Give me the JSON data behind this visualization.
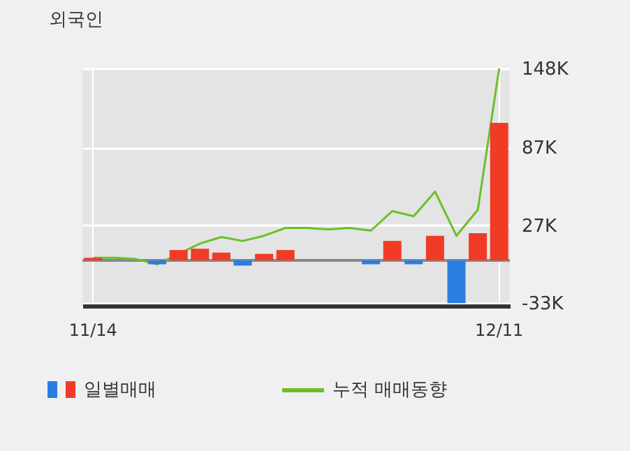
{
  "chart_data": {
    "type": "bar",
    "title": "외국인",
    "categories": [
      "11/14",
      null,
      null,
      null,
      null,
      null,
      null,
      null,
      null,
      null,
      null,
      null,
      null,
      null,
      null,
      null,
      null,
      null,
      null,
      "12/11"
    ],
    "series": [
      {
        "name": "일별매매",
        "values": [
          2000,
          null,
          null,
          -3000,
          8000,
          9000,
          6000,
          -4000,
          5000,
          8000,
          null,
          null,
          null,
          -3000,
          15000,
          -3000,
          19000,
          -33000,
          21000,
          106000
        ],
        "colors": [
          "#f03c26",
          null,
          null,
          "#2a7de1",
          "#f03c26",
          "#f03c26",
          "#f03c26",
          "#2a7de1",
          "#f03c26",
          "#f03c26",
          null,
          null,
          null,
          "#2a7de1",
          "#f03c26",
          "#2a7de1",
          "#f03c26",
          "#2a7de1",
          "#f03c26",
          "#f03c26"
        ]
      },
      {
        "name": "누적 매매동향",
        "type": "line",
        "color": "#6cbf2a",
        "values": [
          2000,
          2000,
          1000,
          -3000,
          5000,
          13000,
          18000,
          15000,
          19000,
          25000,
          25000,
          24000,
          25000,
          23000,
          38000,
          34000,
          53000,
          19000,
          39000,
          148000
        ]
      }
    ],
    "ylim": [
      -35000,
      148000
    ],
    "yticks": [
      {
        "value": -33000,
        "label": "-33K"
      },
      {
        "value": 27000,
        "label": "27K"
      },
      {
        "value": 87000,
        "label": "87K"
      },
      {
        "value": 148000,
        "label": "148K"
      }
    ],
    "ref_lines": [
      {
        "axis": "y",
        "value": 0,
        "color": "#888888"
      }
    ],
    "grid": true,
    "legend": "bottom"
  }
}
